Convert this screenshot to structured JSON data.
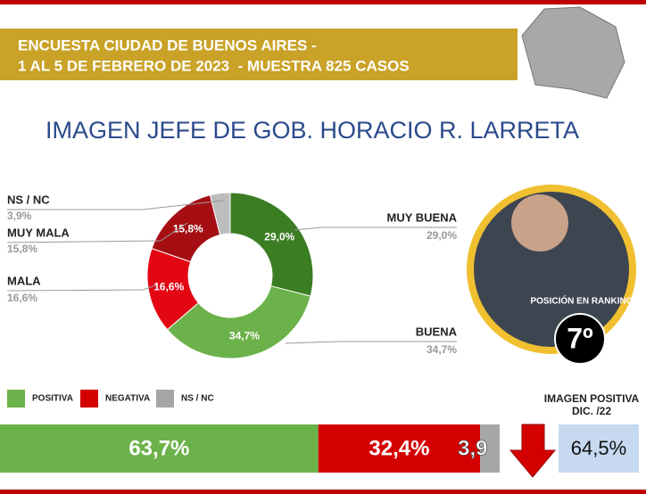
{
  "header": {
    "title_line1": "ENCUESTA CIUDAD DE BUENOS AIRES -",
    "title_line2": "1 AL 5 DE FEBRERO DE 2023  - MUESTRA 825 CASOS"
  },
  "chart_data": [
    {
      "type": "donut",
      "title": "IMAGEN JEFE DE GOB. HORACIO R. LARRETA",
      "categories": [
        "MUY BUENA",
        "BUENA",
        "MALA",
        "MUY MALA",
        "NS / NC"
      ],
      "values": [
        29.0,
        34.7,
        16.6,
        15.8,
        3.9
      ],
      "value_labels": [
        "29,0%",
        "34,7%",
        "16,6%",
        "15,8%",
        "3,9%"
      ],
      "colors": [
        "#3b7d23",
        "#6cb24a",
        "#e30613",
        "#a50f14",
        "#bdbdbd"
      ]
    },
    {
      "type": "stacked-bar",
      "categories": [
        "POSITIVA",
        "NEGATIVA",
        "NS / NC"
      ],
      "values": [
        63.7,
        32.4,
        3.9
      ],
      "value_labels": [
        "63,7%",
        "32,4%",
        "3,9"
      ],
      "colors": [
        "#6cb24a",
        "#d40000",
        "#a6a6a6"
      ]
    }
  ],
  "ranking": {
    "label": "POSICIÓN EN RANKING",
    "position": "7º"
  },
  "previous": {
    "label_line1": "IMAGEN POSITIVA",
    "label_line2": "DIC. /22",
    "value_label": "64,5%"
  }
}
